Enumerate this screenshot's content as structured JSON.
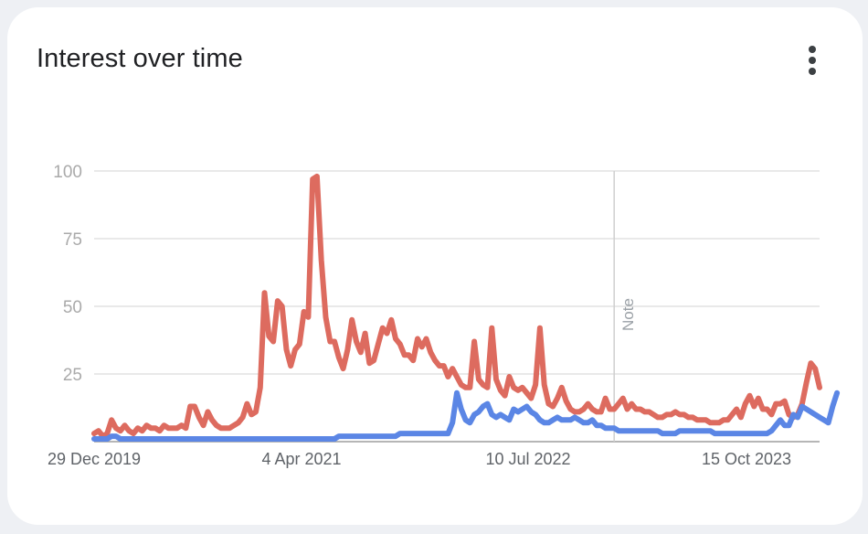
{
  "card": {
    "title": "Interest over time",
    "menu_icon": "more-vert-icon"
  },
  "chart_data": {
    "type": "line",
    "title": "Interest over time",
    "xlabel": "",
    "ylabel": "",
    "ylim": [
      0,
      100
    ],
    "yticks": [
      25,
      50,
      75,
      100
    ],
    "xtick_labels": [
      "29 Dec 2019",
      "4 Apr 2021",
      "10 Jul 2022",
      "15 Oct 2023"
    ],
    "x_period": "weekly, Dec 2019 – Apr 2024",
    "grid": true,
    "annotation": {
      "label": "Note",
      "x_index": 119
    },
    "series": [
      {
        "color": "#dd6b5f",
        "values": [
          3,
          4,
          2,
          3,
          8,
          5,
          4,
          6,
          4,
          3,
          5,
          4,
          6,
          5,
          5,
          4,
          6,
          5,
          5,
          5,
          6,
          5,
          13,
          13,
          9,
          6,
          11,
          8,
          6,
          5,
          5,
          5,
          6,
          7,
          9,
          14,
          10,
          11,
          20,
          55,
          39,
          37,
          52,
          50,
          34,
          28,
          34,
          36,
          48,
          46,
          97,
          98,
          67,
          46,
          37,
          37,
          31,
          27,
          34,
          45,
          37,
          33,
          40,
          29,
          30,
          36,
          42,
          40,
          45,
          38,
          36,
          32,
          32,
          30,
          38,
          35,
          38,
          33,
          30,
          28,
          28,
          24,
          27,
          24,
          21,
          20,
          20,
          37,
          23,
          21,
          20,
          42,
          23,
          19,
          17,
          24,
          20,
          19,
          20,
          18,
          16,
          21,
          42,
          21,
          14,
          13,
          16,
          20,
          15,
          12,
          11,
          11,
          12,
          14,
          12,
          11,
          11,
          16,
          12,
          12,
          14,
          16,
          12,
          14,
          12,
          12,
          11,
          11,
          10,
          9,
          9,
          10,
          10,
          11,
          10,
          10,
          9,
          9,
          8,
          8,
          8,
          7,
          7,
          7,
          8,
          8,
          10,
          12,
          9,
          14,
          17,
          13,
          16,
          12,
          12,
          10,
          14,
          14,
          15,
          10,
          9,
          10,
          14,
          22,
          29,
          27,
          20
        ]
      },
      {
        "color": "#5b86e5",
        "values": [
          1,
          1,
          1,
          1,
          2,
          2,
          1,
          1,
          1,
          1,
          1,
          1,
          1,
          1,
          1,
          1,
          1,
          1,
          1,
          1,
          1,
          1,
          1,
          1,
          1,
          1,
          1,
          1,
          1,
          1,
          1,
          1,
          1,
          1,
          1,
          1,
          1,
          1,
          1,
          1,
          1,
          1,
          1,
          1,
          1,
          1,
          1,
          1,
          1,
          1,
          1,
          1,
          1,
          1,
          1,
          1,
          2,
          2,
          2,
          2,
          2,
          2,
          2,
          2,
          2,
          2,
          2,
          2,
          2,
          2,
          3,
          3,
          3,
          3,
          3,
          3,
          3,
          3,
          3,
          3,
          3,
          3,
          7,
          18,
          12,
          8,
          7,
          10,
          11,
          13,
          14,
          10,
          9,
          10,
          9,
          8,
          12,
          11,
          12,
          13,
          11,
          10,
          8,
          7,
          7,
          8,
          9,
          8,
          8,
          8,
          9,
          8,
          7,
          7,
          8,
          6,
          6,
          5,
          5,
          5,
          4,
          4,
          4,
          4,
          4,
          4,
          4,
          4,
          4,
          4,
          3,
          3,
          3,
          3,
          4,
          4,
          4,
          4,
          4,
          4,
          4,
          4,
          3,
          3,
          3,
          3,
          3,
          3,
          3,
          3,
          3,
          3,
          3,
          3,
          3,
          4,
          6,
          8,
          6,
          6,
          10,
          9,
          13,
          12,
          11,
          10,
          9,
          8,
          7,
          13,
          18
        ]
      }
    ]
  }
}
